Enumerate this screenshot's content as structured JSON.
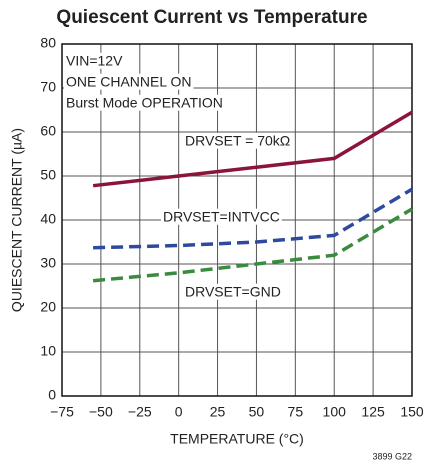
{
  "chart_data": {
    "type": "line",
    "title": "Quiescent Current vs Temperature",
    "x_label": "TEMPERATURE (°C)",
    "y_label": "QUIESCENT CURRENT (µA)",
    "annotations": [
      "VIN=12V",
      "ONE CHANNEL ON",
      "Burst Mode OPERATION"
    ],
    "footnote": "3899 G22",
    "x": [
      -55,
      0,
      50,
      100,
      150
    ],
    "series": [
      {
        "name": "DRVSET = 70kΩ",
        "color": "#8b1538",
        "dash": "solid",
        "values": [
          47.8,
          50,
          52,
          54,
          64.5
        ]
      },
      {
        "name": "DRVSET=INTVCC",
        "color": "#2e4a9e",
        "dash": "dashed",
        "values": [
          33.7,
          34.2,
          35,
          36.5,
          47
        ]
      },
      {
        "name": "DRVSET=GND",
        "color": "#3a8a3f",
        "dash": "dashed",
        "values": [
          26.2,
          28,
          30,
          32,
          42.5
        ]
      }
    ],
    "xlim": [
      -75,
      150
    ],
    "xticks": [
      {
        "value": -75,
        "label": "−75"
      },
      {
        "value": -50,
        "label": "−50"
      },
      {
        "value": -25,
        "label": "−25"
      },
      0,
      25,
      50,
      75,
      100,
      125,
      150
    ],
    "ylim": [
      0,
      80
    ],
    "yticks": [
      0,
      10,
      20,
      30,
      40,
      50,
      60,
      70,
      80
    ],
    "grid": true
  }
}
